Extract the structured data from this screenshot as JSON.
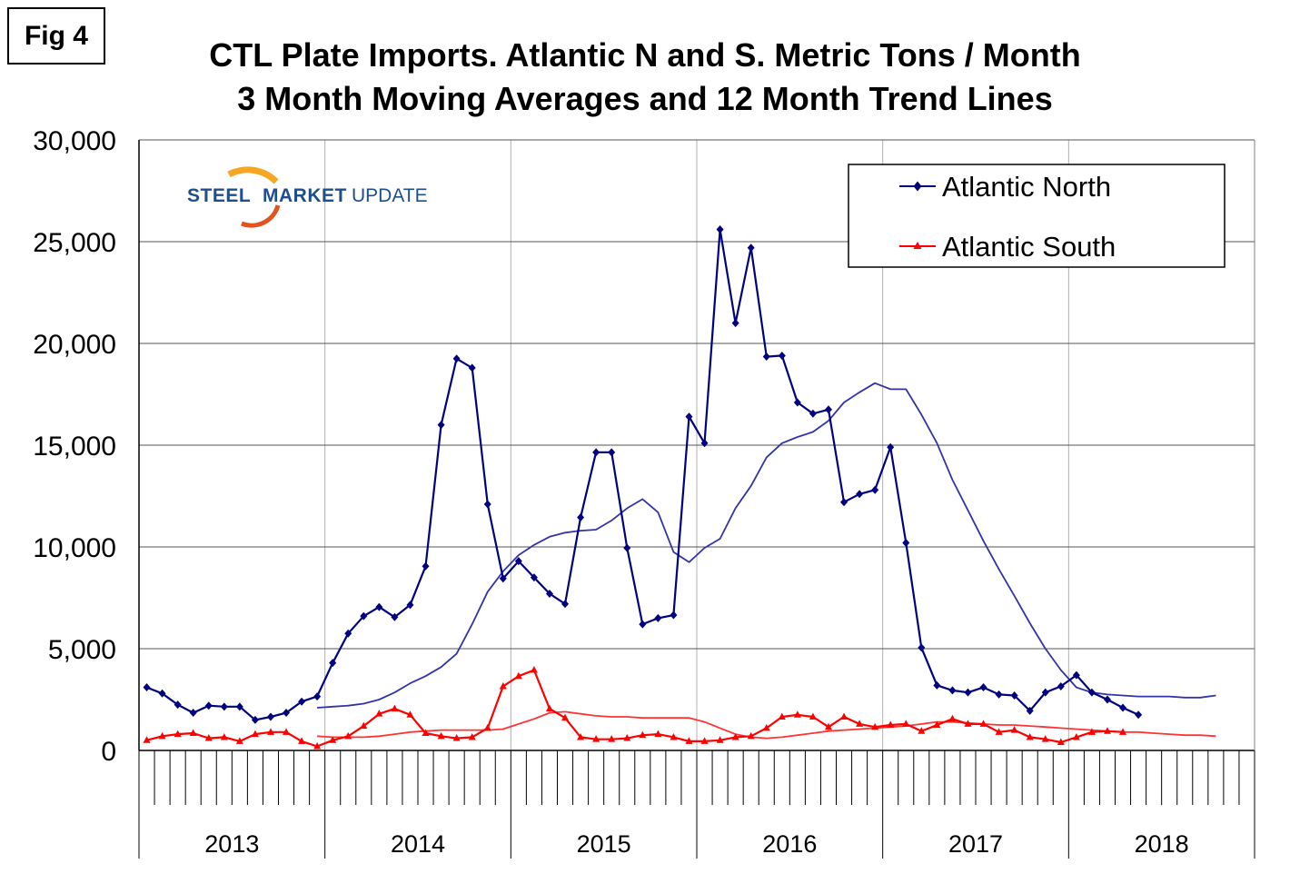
{
  "figure_label": "Fig 4",
  "chart_data": {
    "type": "line",
    "title": "CTL Plate Imports. Atlantic N and S. Metric Tons / Month",
    "subtitle": "3 Month Moving Averages and 12 Month Trend Lines",
    "logo_text": {
      "part1": "STEEL",
      "part2": "MARKET",
      "part3": "UPDATE"
    },
    "ylim": [
      0,
      30000
    ],
    "y_ticks": [
      0,
      5000,
      10000,
      15000,
      20000,
      25000,
      30000
    ],
    "y_tick_labels": [
      "0",
      "5,000",
      "10,000",
      "15,000",
      "20,000",
      "25,000",
      "30,000"
    ],
    "x_unit": "month",
    "x_start": "2013-01",
    "months_total": 72,
    "years": [
      "2013",
      "2014",
      "2015",
      "2016",
      "2017",
      "2018"
    ],
    "legend_position": "top-right",
    "series": [
      {
        "name": "Atlantic North",
        "color": "#000080",
        "marker": "diamond",
        "values": [
          3100,
          2800,
          2250,
          1850,
          2200,
          2150,
          2150,
          1500,
          1650,
          1850,
          2400,
          2650,
          4300,
          5750,
          6600,
          7050,
          6550,
          7150,
          9050,
          16000,
          19250,
          18800,
          12100,
          8450,
          9300,
          8500,
          7700,
          7200,
          11450,
          14650,
          14650,
          9950,
          6200,
          6500,
          6650,
          16400,
          15100,
          25600,
          21000,
          24700,
          19350,
          19400,
          17100,
          16550,
          16750,
          12200,
          12600,
          12800,
          14900,
          10200,
          5050,
          3200,
          2950,
          2850,
          3100,
          2750,
          2700,
          1950,
          2850,
          3150,
          3700,
          2850,
          2500,
          2100,
          1750
        ]
      },
      {
        "name": "Atlantic South",
        "color": "#ff0000",
        "marker": "triangle",
        "values": [
          500,
          700,
          800,
          850,
          600,
          650,
          450,
          800,
          900,
          900,
          450,
          200,
          500,
          700,
          1200,
          1800,
          2050,
          1750,
          850,
          700,
          600,
          650,
          1100,
          3150,
          3650,
          3950,
          2050,
          1600,
          650,
          550,
          550,
          600,
          750,
          800,
          650,
          450,
          450,
          500,
          650,
          700,
          1100,
          1650,
          1750,
          1650,
          1150,
          1650,
          1300,
          1150,
          1250,
          1300,
          950,
          1250,
          1550,
          1300,
          1300,
          900,
          1000,
          650,
          550,
          400,
          650,
          900,
          950,
          900
        ]
      },
      {
        "name": "Atlantic North trend",
        "color": "#3333aa",
        "values": [
          null,
          null,
          null,
          null,
          null,
          null,
          null,
          null,
          null,
          null,
          null,
          2100,
          2150,
          2200,
          2300,
          2500,
          2850,
          3300,
          3650,
          4100,
          4750,
          6200,
          7800,
          8800,
          9600,
          10100,
          10500,
          10700,
          10800,
          10850,
          11300,
          11900,
          12350,
          11700,
          9750,
          9250,
          9950,
          10400,
          11900,
          13000,
          14400,
          15100,
          15400,
          15650,
          16200,
          17100,
          17600,
          18050,
          17750,
          17750,
          16500,
          15100,
          13300,
          11800,
          10300,
          8900,
          7600,
          6250,
          5000,
          3950,
          3100,
          2850,
          2750,
          2700,
          2650,
          2650,
          2650,
          2600,
          2600,
          2700
        ]
      },
      {
        "name": "Atlantic South trend",
        "color": "#ff3333",
        "values": [
          null,
          null,
          null,
          null,
          null,
          null,
          null,
          null,
          null,
          null,
          null,
          700,
          650,
          650,
          650,
          700,
          800,
          900,
          950,
          1000,
          1000,
          1000,
          1000,
          1050,
          1300,
          1550,
          1850,
          1900,
          1800,
          1700,
          1650,
          1650,
          1600,
          1600,
          1600,
          1600,
          1400,
          1100,
          800,
          650,
          600,
          650,
          750,
          850,
          950,
          1000,
          1050,
          1100,
          1150,
          1200,
          1300,
          1400,
          1400,
          1350,
          1300,
          1250,
          1250,
          1200,
          1150,
          1100,
          1050,
          1000,
          950,
          900,
          900,
          850,
          800,
          750,
          750,
          700
        ]
      }
    ]
  }
}
